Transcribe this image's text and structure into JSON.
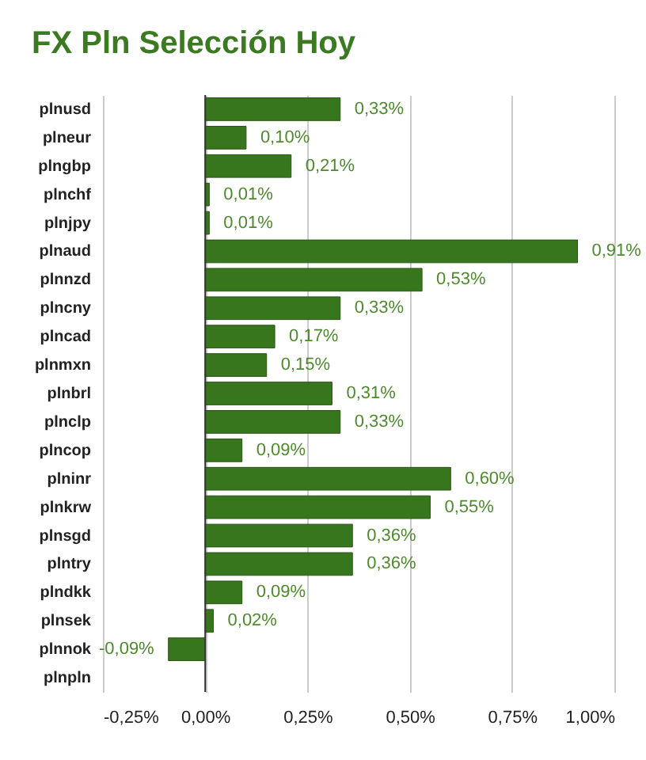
{
  "chart_data": {
    "type": "bar",
    "orientation": "horizontal",
    "title": "FX Pln Selección Hoy",
    "categories": [
      "plnusd",
      "plneur",
      "plngbp",
      "plnchf",
      "plnjpy",
      "plnaud",
      "plnnzd",
      "plncny",
      "plncad",
      "plnmxn",
      "plnbrl",
      "plnclp",
      "plncop",
      "plninr",
      "plnkrw",
      "plnsgd",
      "plntry",
      "plndkk",
      "plnsek",
      "plnnok",
      "plnpln"
    ],
    "values": [
      0.33,
      0.1,
      0.21,
      0.01,
      0.01,
      0.91,
      0.53,
      0.33,
      0.17,
      0.15,
      0.31,
      0.33,
      0.09,
      0.6,
      0.55,
      0.36,
      0.36,
      0.09,
      0.02,
      -0.09,
      null
    ],
    "value_labels": [
      "0,33%",
      "0,10%",
      "0,21%",
      "0,01%",
      "0,01%",
      "0,91%",
      "0,53%",
      "0,33%",
      "0,17%",
      "0,15%",
      "0,31%",
      "0,33%",
      "0,09%",
      "0,60%",
      "0,55%",
      "0,36%",
      "0,36%",
      "0,09%",
      "0,02%",
      "-0,09%",
      null
    ],
    "color": "#38761d",
    "xlim": [
      -0.25,
      1.0
    ],
    "xticks": [
      {
        "value": -0.25,
        "label": "-0,25%"
      },
      {
        "value": 0,
        "label": "0,00%"
      },
      {
        "value": 0.25,
        "label": "0,25%"
      },
      {
        "value": 0.5,
        "label": "0,50%"
      },
      {
        "value": 0.75,
        "label": "0,75%"
      },
      {
        "value": 1.0,
        "label": "1,00%"
      }
    ],
    "grid": "x",
    "ref_lines": [
      {
        "axis": "x",
        "value": 0,
        "color": "#333333"
      }
    ]
  }
}
